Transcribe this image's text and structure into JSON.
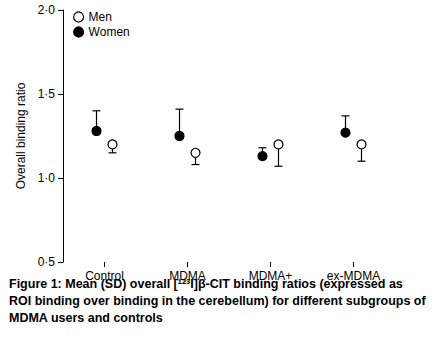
{
  "chart_data": {
    "type": "scatter",
    "caption_label": "Figure 1:",
    "title": "Mean (SD) overall [¹²³I]β-CIT binding ratios (expressed as ROI binding over binding in the cerebellum) for different subgroups of MDMA users and controls",
    "y_label": "Overall binding ratio",
    "categories": [
      "Control",
      "MDMA",
      "MDMA+",
      "ex-MDMA"
    ],
    "series": [
      {
        "name": "Men",
        "color": "#000000",
        "marker": "open_circle",
        "values": [
          1.2,
          1.15,
          1.2,
          1.2
        ],
        "sd": [
          0.05,
          0.07,
          0.13,
          0.1
        ]
      },
      {
        "name": "Women",
        "color": "#000000",
        "marker": "circle",
        "values": [
          1.28,
          1.25,
          1.13,
          1.27
        ],
        "sd": [
          0.12,
          0.16,
          0.05,
          0.1
        ]
      }
    ],
    "ylim": [
      0.5,
      2.0
    ],
    "yticks": [
      {
        "value": 0.5,
        "label": "0·5"
      },
      {
        "value": 1.0,
        "label": "1·0"
      },
      {
        "value": 1.5,
        "label": "1·5"
      },
      {
        "value": 2.0,
        "label": "2·0"
      }
    ],
    "grid": false,
    "legend": "top-left"
  }
}
